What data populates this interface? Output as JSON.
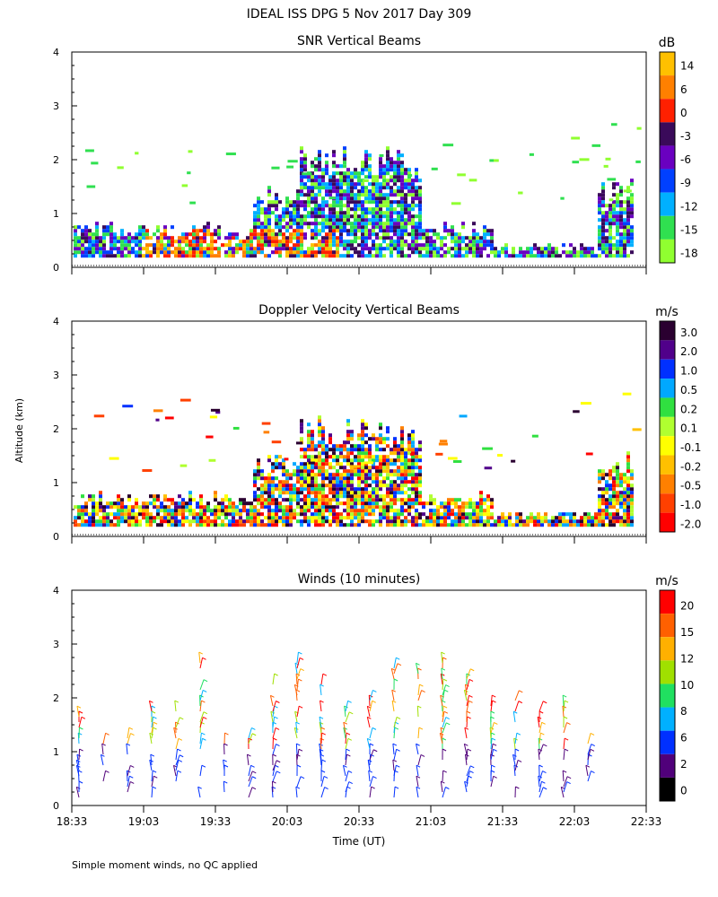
{
  "figure_title": "IDEAL ISS DPG    5 Nov 2017 Day 309",
  "footnote": "Simple moment winds, no QC applied",
  "y_axis_label": "Altitude (km)",
  "x_axis_label": "Time (UT)",
  "chart_data": [
    {
      "type": "heatmap",
      "title": "SNR Vertical Beams",
      "colorbar_unit": "dB",
      "ylim": [
        0,
        4
      ],
      "yticks": [
        0,
        1,
        2,
        3,
        4
      ],
      "colorbar_labels": [
        "14",
        "6",
        "0",
        "-3",
        "-6",
        "-9",
        "-12",
        "-15",
        "-18"
      ],
      "colors": [
        "#ffc000",
        "#ff8000",
        "#ff2000",
        "#3a0a5a",
        "#6a00c0",
        "#0040ff",
        "#00b0ff",
        "#30e050",
        "#90ff30"
      ]
    },
    {
      "type": "heatmap",
      "title": "Doppler Velocity Vertical Beams",
      "colorbar_unit": "m/s",
      "ylim": [
        0,
        4
      ],
      "yticks": [
        0,
        1,
        2,
        3,
        4
      ],
      "colorbar_labels": [
        "3.0",
        "2.0",
        "1.0",
        "0.5",
        "0.2",
        "0.1",
        "-0.1",
        "-0.2",
        "-0.5",
        "-1.0",
        "-2.0"
      ],
      "colors": [
        "#2a0030",
        "#50008a",
        "#0030ff",
        "#00a8ff",
        "#30e040",
        "#b0ff30",
        "#ffff00",
        "#ffc000",
        "#ff8000",
        "#ff4000",
        "#ff0000"
      ]
    },
    {
      "type": "scatter",
      "title": "Winds (10 minutes)",
      "colorbar_unit": "m/s",
      "ylim": [
        0,
        4
      ],
      "yticks": [
        0,
        1,
        2,
        3,
        4
      ],
      "xticks": [
        "18:33",
        "19:03",
        "19:33",
        "20:03",
        "20:33",
        "21:03",
        "21:33",
        "22:03",
        "22:33"
      ],
      "xlim_minutes": [
        0,
        240
      ],
      "colorbar_labels": [
        "20",
        "15",
        "12",
        "10",
        "8",
        "6",
        "2",
        "0"
      ],
      "colors": [
        "#ff0000",
        "#ff6000",
        "#ffb000",
        "#a0e000",
        "#20e060",
        "#00b0ff",
        "#0030ff",
        "#50007a",
        "#000000"
      ]
    }
  ]
}
